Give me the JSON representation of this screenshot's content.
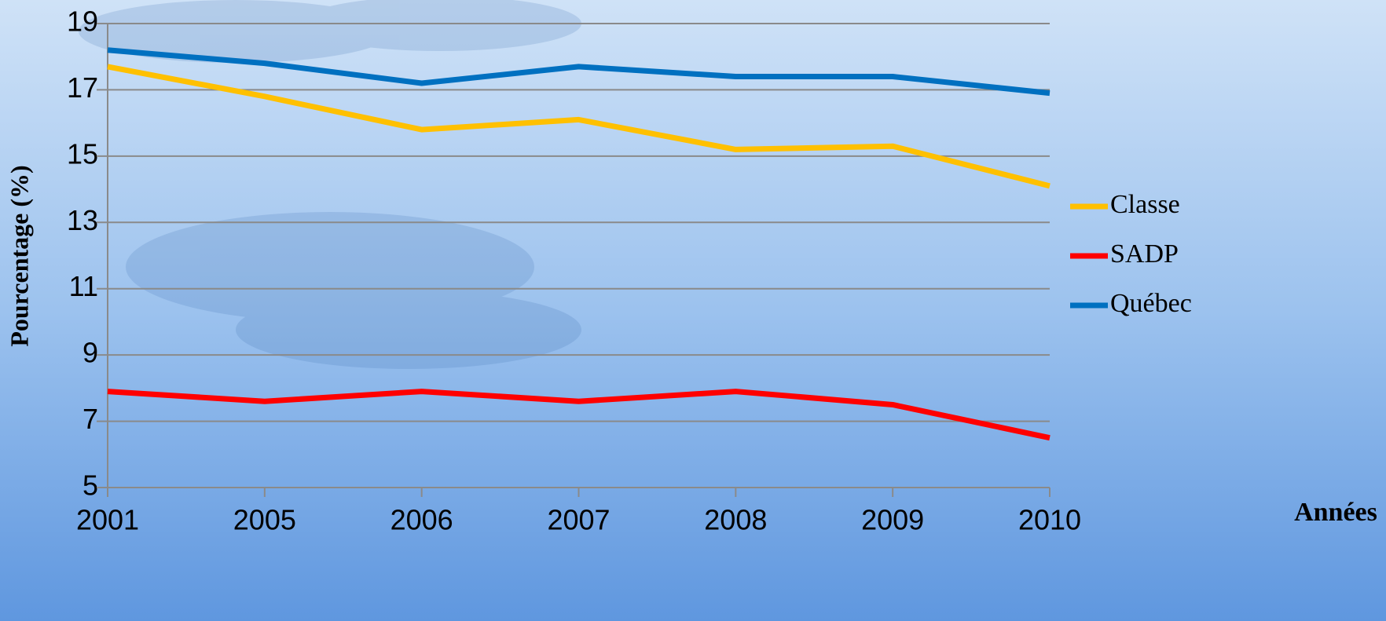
{
  "chart_data": {
    "type": "line",
    "x_label": "Années",
    "y_label": "Pourcentage (%)",
    "categories": [
      "2001",
      "2005",
      "2006",
      "2007",
      "2008",
      "2009",
      "2010"
    ],
    "series": [
      {
        "name": "Classe",
        "color": "#ffc000",
        "values": [
          17.7,
          16.8,
          15.8,
          16.1,
          15.2,
          15.3,
          14.1
        ]
      },
      {
        "name": "SADP",
        "color": "#ff0000",
        "values": [
          7.9,
          7.6,
          7.9,
          7.6,
          7.9,
          7.5,
          6.5
        ]
      },
      {
        "name": "Québec",
        "color": "#0070c0",
        "values": [
          18.2,
          17.8,
          17.2,
          17.7,
          17.4,
          17.4,
          16.9
        ]
      }
    ],
    "ylim": [
      5,
      19
    ],
    "yticks": [
      5,
      7,
      9,
      11,
      13,
      15,
      17,
      19
    ],
    "grid": true,
    "legend": "right"
  }
}
